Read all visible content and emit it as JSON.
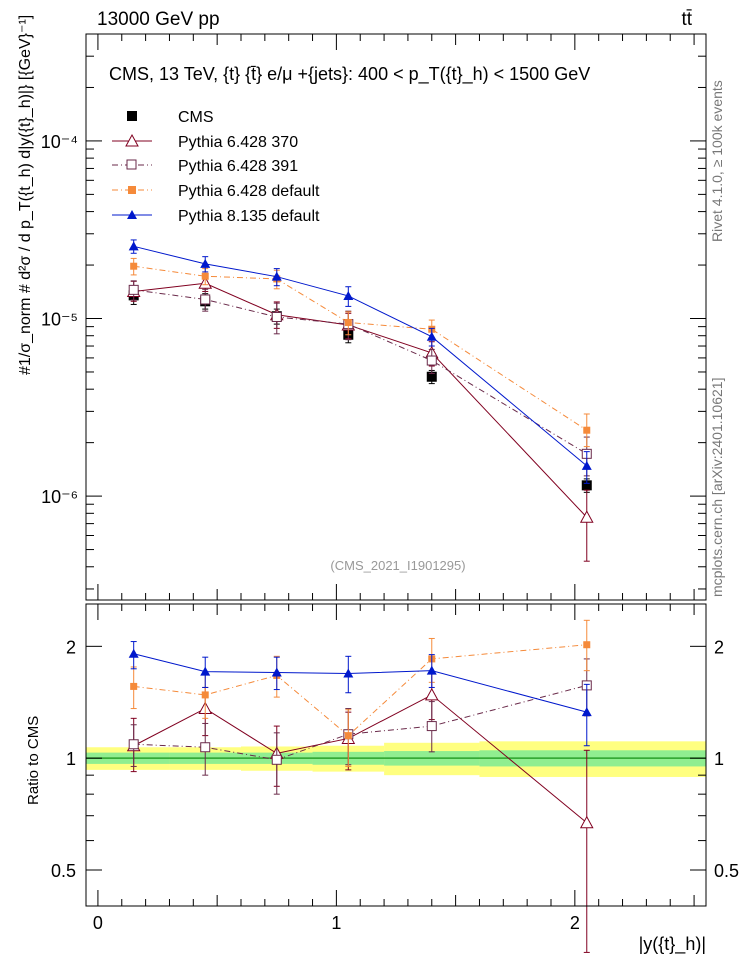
{
  "header": {
    "left": "13000 GeV pp",
    "right": "tt̄"
  },
  "side_text": {
    "rivet": "Rivet 4.1.0, ≥ 100k events",
    "mcplots": "mcplots.cern.ch [arXiv:2401.10621]"
  },
  "watermark": "(CMS_2021_I1901295)",
  "chart_data": [
    {
      "type": "scatter",
      "panel": "main",
      "title": "CMS, 13 TeV, {t} {t̄} e/μ +{jets}: 400 < p_T({t}_h) < 1500 GeV",
      "ylabel": "#1/σ_norm # d²σ / d p_T({t_h) d|y({t}_h)|} [{GeV}⁻¹]",
      "yscale": "log",
      "ylim": [
        2.6e-07,
        0.0004
      ],
      "xlim": [
        -0.05,
        2.55
      ],
      "yticks": [
        "10⁻⁶",
        "10⁻⁵",
        "10⁻⁴"
      ],
      "x": [
        0.15,
        0.45,
        0.75,
        1.05,
        1.4,
        2.05
      ],
      "series": [
        {
          "name": "CMS",
          "values": [
            1.35e-05,
            1.25e-05,
            1.03e-05,
            8.1e-06,
            4.7e-06,
            1.15e-06
          ],
          "err_lo": [
            1.2e-05,
            1.13e-05,
            9.3e-06,
            7.3e-06,
            4.3e-06,
            1.05e-06
          ],
          "err_hi": [
            1.5e-05,
            1.38e-05,
            1.13e-05,
            8.9e-06,
            5.1e-06,
            1.25e-06
          ],
          "color": "#000000",
          "marker": "square-filled",
          "line": "none"
        },
        {
          "name": "Pythia 6.428 370",
          "values": [
            1.42e-05,
            1.58e-05,
            1.05e-05,
            9.2e-06,
            6.4e-06,
            7.6e-07
          ],
          "err_lo": [
            1.25e-05,
            1.42e-05,
            8.8e-06,
            7.7e-06,
            5.4e-06,
            4.3e-07
          ],
          "err_hi": [
            1.62e-05,
            1.76e-05,
            1.24e-05,
            1.07e-05,
            7.4e-06,
            1.08e-06
          ],
          "color": "#800020",
          "marker": "triangle-open",
          "line": "solid"
        },
        {
          "name": "Pythia 6.428 391",
          "values": [
            1.45e-05,
            1.28e-05,
            1.02e-05,
            9.3e-06,
            5.8e-06,
            1.73e-06
          ],
          "err_lo": [
            1.27e-05,
            1.1e-05,
            8.2e-06,
            7.6e-06,
            4.9e-06,
            1.3e-06
          ],
          "err_hi": [
            1.63e-05,
            1.46e-05,
            1.22e-05,
            1.1e-05,
            6.7e-06,
            2.15e-06
          ],
          "color": "#6a2a4a",
          "marker": "square-open",
          "line": "dashdot"
        },
        {
          "name": "Pythia 6.428 default",
          "values": [
            1.97e-05,
            1.73e-05,
            1.67e-05,
            9.5e-06,
            8.7e-06,
            2.35e-06
          ],
          "err_lo": [
            1.76e-05,
            1.55e-05,
            1.47e-05,
            8.1e-06,
            7.6e-06,
            1.9e-06
          ],
          "err_hi": [
            2.18e-05,
            1.91e-05,
            1.87e-05,
            1.09e-05,
            9.8e-06,
            2.9e-06
          ],
          "color": "#f58a3a",
          "marker": "square-filled",
          "line": "dashdot"
        },
        {
          "name": "Pythia 8.135 default",
          "values": [
            2.55e-05,
            2.03e-05,
            1.72e-05,
            1.34e-05,
            7.9e-06,
            1.48e-06
          ],
          "err_lo": [
            2.33e-05,
            1.83e-05,
            1.53e-05,
            1.17e-05,
            7e-06,
            1.18e-06
          ],
          "err_hi": [
            2.77e-05,
            2.23e-05,
            1.91e-05,
            1.51e-05,
            8.8e-06,
            1.78e-06
          ],
          "color": "#0018cc",
          "marker": "triangle-filled",
          "line": "solid"
        }
      ]
    },
    {
      "type": "scatter",
      "panel": "ratio",
      "ylabel": "Ratio to CMS",
      "xlabel": "|y({t}_h)|",
      "yscale": "log",
      "ylim": [
        0.4,
        2.6
      ],
      "xlim": [
        -0.05,
        2.55
      ],
      "xticks": [
        "0",
        "1",
        "2"
      ],
      "yticks": [
        "0.5",
        "1",
        "2"
      ],
      "x": [
        0.15,
        0.45,
        0.75,
        1.05,
        1.4,
        2.05
      ],
      "bands": {
        "edges": [
          -0.05,
          0.3,
          0.6,
          0.9,
          1.2,
          1.6,
          2.55
        ],
        "inner_lo": [
          0.965,
          0.965,
          0.965,
          0.96,
          0.955,
          0.95
        ],
        "inner_hi": [
          1.035,
          1.035,
          1.035,
          1.04,
          1.045,
          1.05
        ],
        "outer_lo": [
          0.93,
          0.93,
          0.925,
          0.92,
          0.9,
          0.89
        ],
        "outer_hi": [
          1.07,
          1.07,
          1.075,
          1.08,
          1.1,
          1.11
        ],
        "inner_color": "#90ee90",
        "outer_color": "#ffff80"
      },
      "series": [
        {
          "name": "Pythia 6.428 370",
          "values": [
            1.08,
            1.36,
            1.03,
            1.13,
            1.48,
            0.67
          ],
          "err_lo": [
            0.92,
            1.15,
            0.84,
            0.93,
            1.27,
            0.3
          ],
          "err_hi": [
            1.28,
            1.55,
            1.22,
            1.33,
            1.7,
            1.05
          ],
          "color": "#800020",
          "marker": "triangle-open",
          "line": "solid"
        },
        {
          "name": "Pythia 6.428 391",
          "values": [
            1.09,
            1.07,
            0.99,
            1.16,
            1.22,
            1.57
          ],
          "err_lo": [
            0.95,
            0.9,
            0.8,
            0.96,
            1.04,
            1.3
          ],
          "err_hi": [
            1.23,
            1.24,
            1.17,
            1.36,
            1.42,
            1.85
          ],
          "color": "#6a2a4a",
          "marker": "square-open",
          "line": "dashdot"
        },
        {
          "name": "Pythia 6.428 default",
          "values": [
            1.56,
            1.48,
            1.67,
            1.15,
            1.85,
            2.02
          ],
          "err_lo": [
            1.36,
            1.28,
            1.46,
            0.95,
            1.6,
            1.72
          ],
          "err_hi": [
            1.76,
            1.68,
            1.88,
            1.35,
            2.1,
            2.35
          ],
          "color": "#f58a3a",
          "marker": "square-filled",
          "line": "dashdot"
        },
        {
          "name": "Pythia 8.135 default",
          "values": [
            1.91,
            1.71,
            1.7,
            1.69,
            1.72,
            1.33
          ],
          "err_lo": [
            1.74,
            1.55,
            1.53,
            1.5,
            1.55,
            1.08
          ],
          "err_hi": [
            2.06,
            1.87,
            1.87,
            1.88,
            1.9,
            1.58
          ],
          "color": "#0018cc",
          "marker": "triangle-filled",
          "line": "solid"
        }
      ]
    }
  ]
}
